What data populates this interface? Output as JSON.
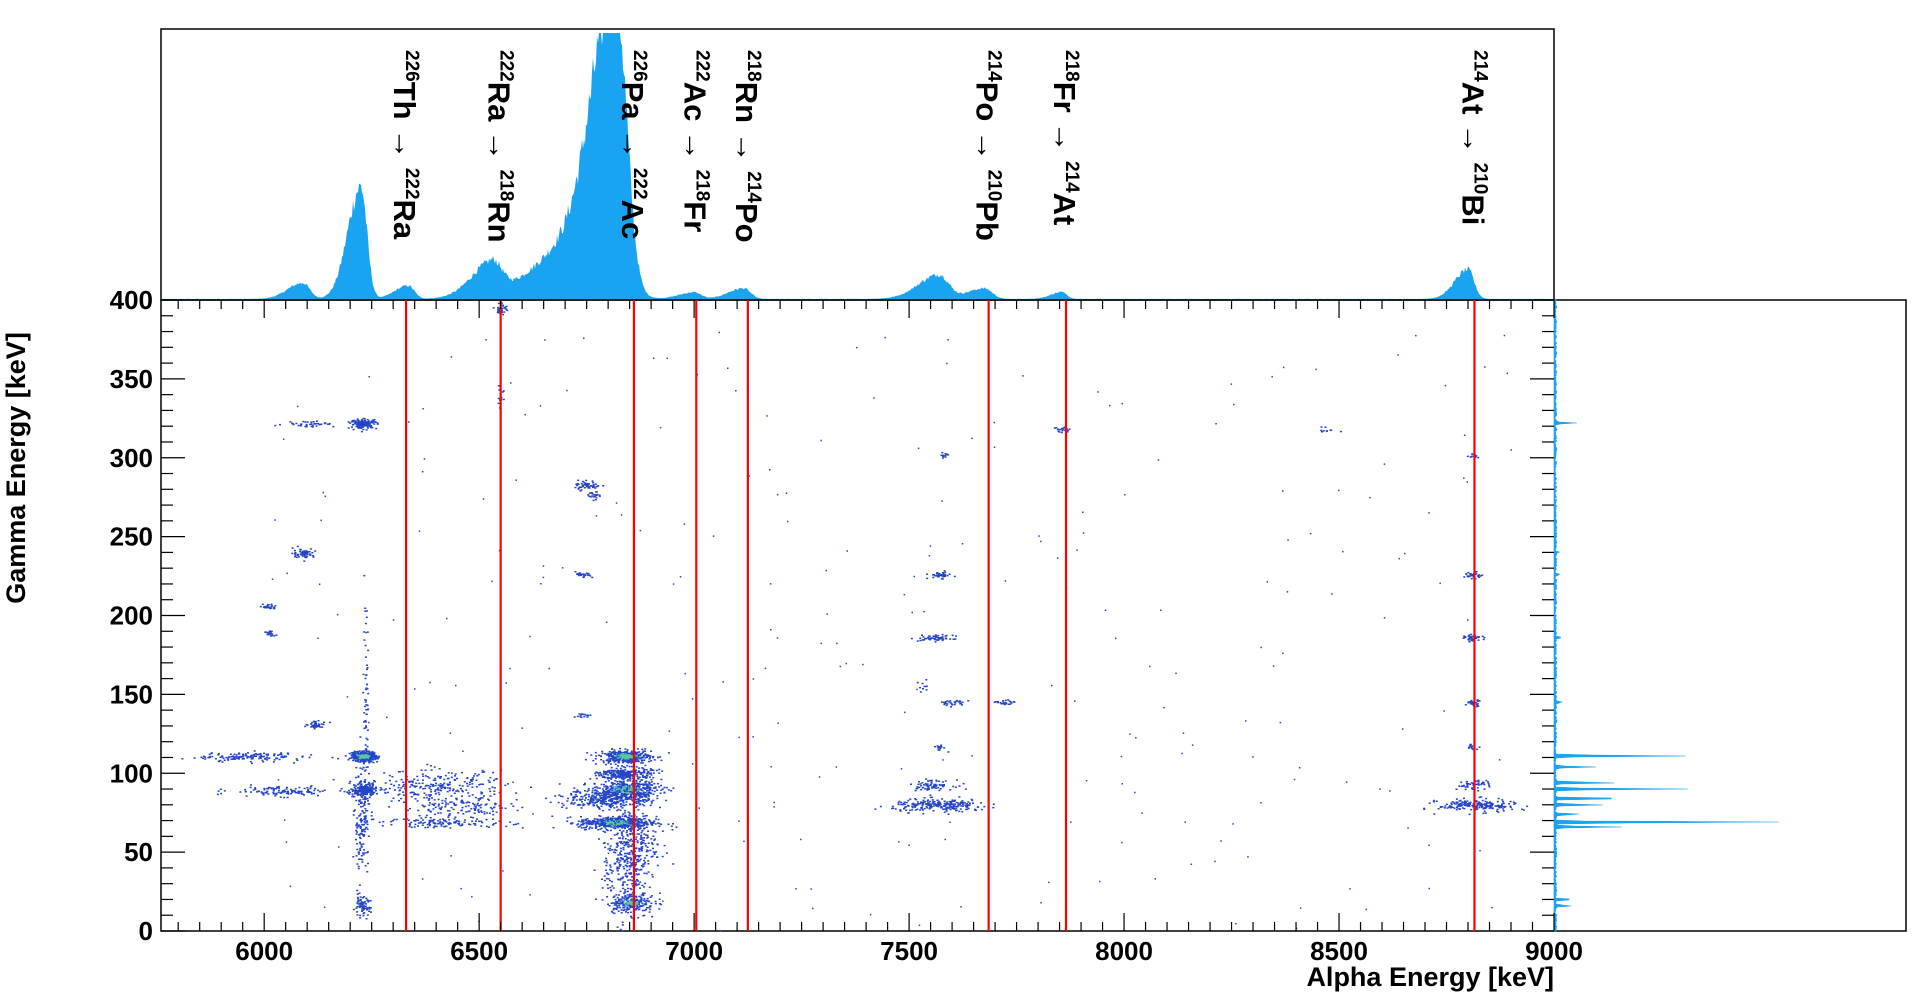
{
  "chart_data": {
    "type": "heatmap",
    "xlabel": "Alpha Energy [keV]",
    "ylabel": "Gamma Energy [keV]",
    "xlim": [
      5760,
      9000
    ],
    "ylim": [
      0,
      400
    ],
    "x_ticks": [
      "6000",
      "6500",
      "7000",
      "7500",
      "8000",
      "8500",
      "9000"
    ],
    "x_tick_values": [
      6000,
      6500,
      7000,
      7500,
      8000,
      8500,
      9000
    ],
    "y_ticks": [
      "0",
      "50",
      "100",
      "150",
      "200",
      "250",
      "300",
      "350",
      "400"
    ],
    "y_tick_values": [
      0,
      50,
      100,
      150,
      200,
      250,
      300,
      350,
      400
    ],
    "colors": {
      "histogram": "#1aa3f0",
      "lines": "#ff0000",
      "points": "#2545c8",
      "hot": "#55c9a0"
    },
    "transitions": [
      {
        "energy": 6330,
        "parent_mass": "226",
        "parent": "Th",
        "arrow": "→",
        "daughter_mass": "222",
        "daughter": "Ra"
      },
      {
        "energy": 6550,
        "parent_mass": "222",
        "parent": "Ra",
        "arrow": "→",
        "daughter_mass": "218",
        "daughter": "Rn"
      },
      {
        "energy": 6860,
        "parent_mass": "226",
        "parent": "Pa",
        "arrow": "→",
        "daughter_mass": "222",
        "daughter": "Ac"
      },
      {
        "energy": 7005,
        "parent_mass": "222",
        "parent": "Ac",
        "arrow": "→",
        "daughter_mass": "218",
        "daughter": "Fr"
      },
      {
        "energy": 7125,
        "parent_mass": "218",
        "parent": "Rn",
        "arrow": "→",
        "daughter_mass": "214",
        "daughter": "Po"
      },
      {
        "energy": 7685,
        "parent_mass": "214",
        "parent": "Po",
        "arrow": "→",
        "daughter_mass": "210",
        "daughter": "Pb"
      },
      {
        "energy": 7865,
        "parent_mass": "218",
        "parent": "Fr",
        "arrow": "→",
        "daughter_mass": "214",
        "daughter": "At"
      },
      {
        "energy": 8815,
        "parent_mass": "214",
        "parent": "At",
        "arrow": "→",
        "daughter_mass": "210",
        "daughter": "Bi"
      }
    ],
    "alpha_peaks": [
      {
        "x": 6090,
        "height": 0.06,
        "width": 16
      },
      {
        "x": 6225,
        "height": 0.42,
        "width": 14
      },
      {
        "x": 6335,
        "height": 0.05,
        "width": 14
      },
      {
        "x": 6530,
        "height": 0.12,
        "width": 22
      },
      {
        "x": 6820,
        "height": 1.0,
        "width": 24
      },
      {
        "x": 6760,
        "height": 0.25,
        "width": 50
      },
      {
        "x": 7000,
        "height": 0.025,
        "width": 16
      },
      {
        "x": 7115,
        "height": 0.04,
        "width": 16
      },
      {
        "x": 7570,
        "height": 0.09,
        "width": 22
      },
      {
        "x": 7675,
        "height": 0.04,
        "width": 18
      },
      {
        "x": 7855,
        "height": 0.025,
        "width": 12
      },
      {
        "x": 8800,
        "height": 0.11,
        "width": 14
      }
    ],
    "gamma_peaks": [
      {
        "y": 322,
        "height": 0.06
      },
      {
        "y": 240,
        "height": 0.01
      },
      {
        "y": 226,
        "height": 0.015
      },
      {
        "y": 186,
        "height": 0.02
      },
      {
        "y": 145,
        "height": 0.02
      },
      {
        "y": 111,
        "height": 0.4
      },
      {
        "y": 104,
        "height": 0.12
      },
      {
        "y": 94,
        "height": 0.2
      },
      {
        "y": 90,
        "height": 0.4
      },
      {
        "y": 84,
        "height": 0.25
      },
      {
        "y": 80,
        "height": 0.15
      },
      {
        "y": 74,
        "height": 0.08
      },
      {
        "y": 69,
        "height": 0.7
      },
      {
        "y": 66,
        "height": 0.2
      },
      {
        "y": 20,
        "height": 0.06
      },
      {
        "y": 16,
        "height": 0.05
      }
    ],
    "clusters": [
      {
        "x": 5960,
        "y": 111,
        "dx": 120,
        "dy": 1.5,
        "n": 150
      },
      {
        "x": 6230,
        "y": 111,
        "dx": 30,
        "dy": 1.5,
        "n": 400,
        "hot": true
      },
      {
        "x": 6230,
        "y": 90,
        "dx": 25,
        "dy": 2,
        "n": 200
      },
      {
        "x": 6040,
        "y": 89,
        "dx": 120,
        "dy": 1.5,
        "n": 120
      },
      {
        "x": 6225,
        "y": 70,
        "dx": 18,
        "dy": 18,
        "n": 160
      },
      {
        "x": 6235,
        "y": 140,
        "dx": 6,
        "dy": 30,
        "n": 60
      },
      {
        "x": 6225,
        "y": 16,
        "dx": 20,
        "dy": 3,
        "n": 70
      },
      {
        "x": 6230,
        "y": 322,
        "dx": 30,
        "dy": 1.5,
        "n": 160
      },
      {
        "x": 6100,
        "y": 322,
        "dx": 60,
        "dy": 1,
        "n": 40
      },
      {
        "x": 6090,
        "y": 240,
        "dx": 25,
        "dy": 1.5,
        "n": 60
      },
      {
        "x": 6120,
        "y": 131,
        "dx": 25,
        "dy": 1,
        "n": 45
      },
      {
        "x": 6010,
        "y": 206,
        "dx": 15,
        "dy": 1,
        "n": 25
      },
      {
        "x": 6010,
        "y": 189,
        "dx": 15,
        "dy": 1,
        "n": 20
      },
      {
        "x": 6400,
        "y": 92,
        "dx": 160,
        "dy": 5,
        "n": 260
      },
      {
        "x": 6450,
        "y": 78,
        "dx": 140,
        "dy": 4,
        "n": 140
      },
      {
        "x": 6420,
        "y": 69,
        "dx": 150,
        "dy": 1.5,
        "n": 120
      },
      {
        "x": 6550,
        "y": 395,
        "dx": 12,
        "dy": 2,
        "n": 40
      },
      {
        "x": 6550,
        "y": 340,
        "dx": 8,
        "dy": 5,
        "n": 10
      },
      {
        "x": 6840,
        "y": 111,
        "dx": 60,
        "dy": 2,
        "n": 380,
        "hot": true
      },
      {
        "x": 6840,
        "y": 100,
        "dx": 60,
        "dy": 2,
        "n": 260
      },
      {
        "x": 6840,
        "y": 90,
        "dx": 80,
        "dy": 3,
        "n": 420,
        "hot": true
      },
      {
        "x": 6800,
        "y": 84,
        "dx": 100,
        "dy": 3,
        "n": 320
      },
      {
        "x": 6820,
        "y": 69,
        "dx": 90,
        "dy": 2,
        "n": 460,
        "hot": true
      },
      {
        "x": 6850,
        "y": 55,
        "dx": 60,
        "dy": 12,
        "n": 300
      },
      {
        "x": 6840,
        "y": 35,
        "dx": 50,
        "dy": 15,
        "n": 200
      },
      {
        "x": 6850,
        "y": 18,
        "dx": 55,
        "dy": 3,
        "n": 180,
        "hot": true
      },
      {
        "x": 6750,
        "y": 283,
        "dx": 30,
        "dy": 1.5,
        "n": 50
      },
      {
        "x": 6765,
        "y": 276,
        "dx": 15,
        "dy": 1.5,
        "n": 20
      },
      {
        "x": 6740,
        "y": 226,
        "dx": 18,
        "dy": 1,
        "n": 25
      },
      {
        "x": 6740,
        "y": 137,
        "dx": 14,
        "dy": 1,
        "n": 15
      },
      {
        "x": 7570,
        "y": 80,
        "dx": 110,
        "dy": 2,
        "n": 240
      },
      {
        "x": 7550,
        "y": 93,
        "dx": 50,
        "dy": 1.5,
        "n": 80
      },
      {
        "x": 7560,
        "y": 186,
        "dx": 40,
        "dy": 1,
        "n": 60
      },
      {
        "x": 7570,
        "y": 226,
        "dx": 25,
        "dy": 1,
        "n": 40
      },
      {
        "x": 7600,
        "y": 145,
        "dx": 40,
        "dy": 1,
        "n": 30
      },
      {
        "x": 7720,
        "y": 145,
        "dx": 20,
        "dy": 1,
        "n": 25
      },
      {
        "x": 7580,
        "y": 302,
        "dx": 15,
        "dy": 1,
        "n": 12
      },
      {
        "x": 7570,
        "y": 117,
        "dx": 15,
        "dy": 1,
        "n": 15
      },
      {
        "x": 7530,
        "y": 155,
        "dx": 15,
        "dy": 2,
        "n": 10
      },
      {
        "x": 7850,
        "y": 318,
        "dx": 25,
        "dy": 1,
        "n": 20
      },
      {
        "x": 8470,
        "y": 318,
        "dx": 15,
        "dy": 1,
        "n": 10
      },
      {
        "x": 8820,
        "y": 80,
        "dx": 90,
        "dy": 2,
        "n": 200
      },
      {
        "x": 8810,
        "y": 93,
        "dx": 40,
        "dy": 1.5,
        "n": 50
      },
      {
        "x": 8810,
        "y": 186,
        "dx": 20,
        "dy": 1,
        "n": 40
      },
      {
        "x": 8810,
        "y": 226,
        "dx": 20,
        "dy": 1,
        "n": 35
      },
      {
        "x": 8810,
        "y": 145,
        "dx": 20,
        "dy": 1,
        "n": 30
      },
      {
        "x": 8810,
        "y": 117,
        "dx": 15,
        "dy": 1,
        "n": 15
      },
      {
        "x": 8810,
        "y": 302,
        "dx": 10,
        "dy": 1,
        "n": 10
      }
    ]
  }
}
